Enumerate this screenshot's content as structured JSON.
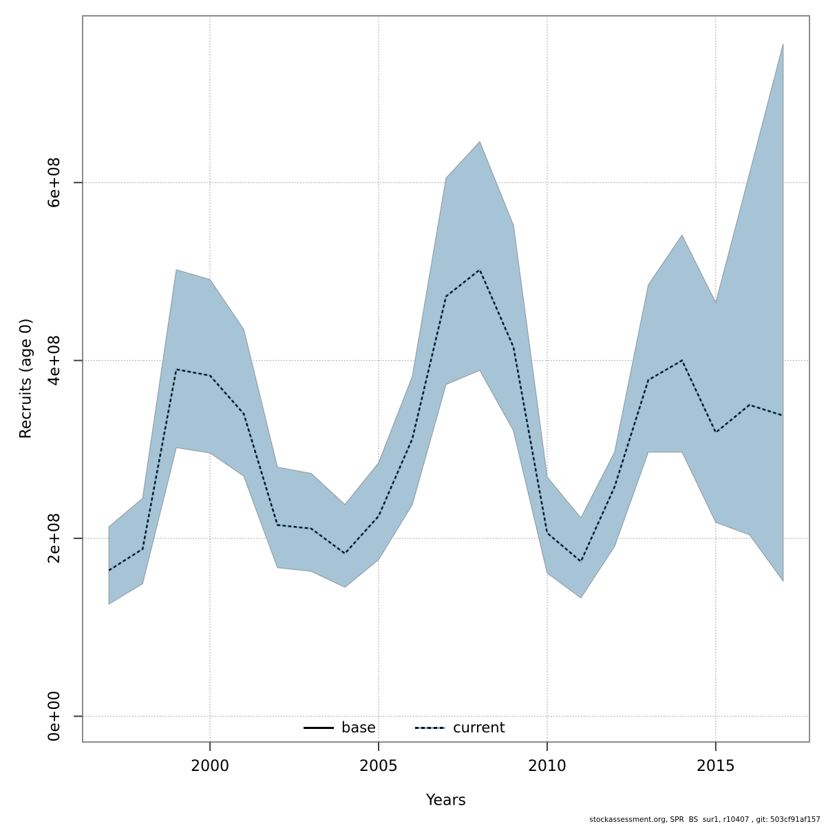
{
  "figure": {
    "footer": "stockassessment.org, SPR  BS  sur1, r10407 , git: 503cf91af157"
  },
  "legend": {
    "items": [
      {
        "label": "base",
        "style": "solid-black-line"
      },
      {
        "label": "current",
        "style": "dotted-blue-line"
      }
    ]
  },
  "colors": {
    "band_fill": "#a6c4d6",
    "band_edge": "#93a0a9",
    "current_line_blue": "#7db7dc",
    "current_line_dash": "#101418",
    "base_line": "#000000",
    "grid": "#999999",
    "frame": "#8c8c8c",
    "tick": "#404040"
  },
  "chart_data": {
    "type": "line",
    "title": "",
    "xlabel": "Years",
    "ylabel": "Recruits (age 0)",
    "grid": true,
    "legend_position": "bottom-center-inside",
    "xlim": [
      1996.22,
      2017.78
    ],
    "ylim": [
      -29000000.0,
      787500000.0
    ],
    "xticks": [
      2000,
      2005,
      2010,
      2015
    ],
    "xtick_labels": [
      "2000",
      "2005",
      "2010",
      "2015"
    ],
    "yticks": [
      0,
      200000000.0,
      400000000.0,
      600000000.0
    ],
    "ytick_labels": [
      "0e+00",
      "2e+08",
      "4e+08",
      "6e+08"
    ],
    "x": [
      1997,
      1998,
      1999,
      2000,
      2001,
      2002,
      2003,
      2004,
      2005,
      2006,
      2007,
      2008,
      2009,
      2010,
      2011,
      2012,
      2013,
      2014,
      2015,
      2016,
      2017
    ],
    "series": [
      {
        "name": "current",
        "values": [
          164000000.0,
          188000000.0,
          390000000.0,
          383000000.0,
          340000000.0,
          215000000.0,
          211000000.0,
          183000000.0,
          225000000.0,
          312000000.0,
          472000000.0,
          502000000.0,
          415000000.0,
          206000000.0,
          174000000.0,
          258000000.0,
          378000000.0,
          400000000.0,
          319000000.0,
          350000000.0,
          338000000.0
        ]
      }
    ],
    "band": {
      "name": "current-confidence-band",
      "lower": [
        126000000.0,
        149000000.0,
        302000000.0,
        296000000.0,
        270000000.0,
        167000000.0,
        163000000.0,
        145000000.0,
        176000000.0,
        238000000.0,
        373000000.0,
        389000000.0,
        321000000.0,
        161000000.0,
        133000000.0,
        191000000.0,
        297000000.0,
        297000000.0,
        218000000.0,
        204000000.0,
        152000000.0
      ],
      "upper": [
        213000000.0,
        245000000.0,
        502000000.0,
        491000000.0,
        435000000.0,
        280000000.0,
        273000000.0,
        238000000.0,
        285000000.0,
        382000000.0,
        605000000.0,
        646000000.0,
        552000000.0,
        269000000.0,
        223000000.0,
        297000000.0,
        485000000.0,
        541000000.0,
        465000000.0,
        610000000.0,
        756000000.0
      ]
    }
  }
}
